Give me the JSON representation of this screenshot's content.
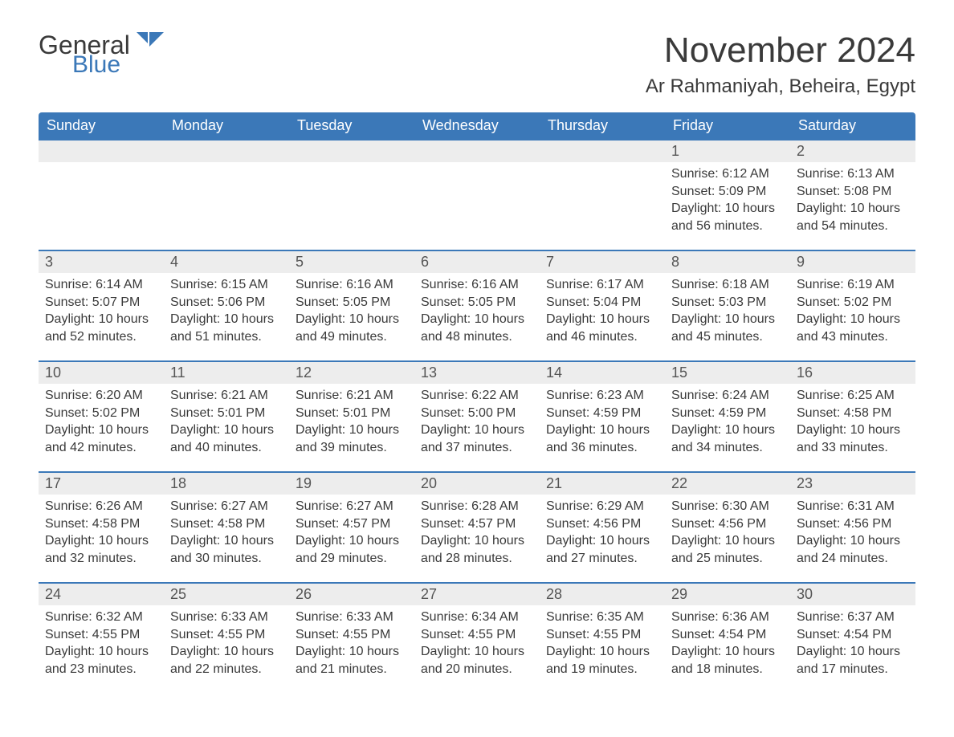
{
  "logo": {
    "part1": "General",
    "part2": "Blue",
    "accent_color": "#3b78b8"
  },
  "title": "November 2024",
  "location": "Ar Rahmaniyah, Beheira, Egypt",
  "colors": {
    "header_bg": "#3b78b8",
    "header_text": "#ffffff",
    "daynum_bg": "#ededed",
    "daynum_border": "#3b78b8",
    "body_text": "#3a3a3a",
    "daynum_text": "#555555",
    "page_bg": "#ffffff"
  },
  "type": "calendar-table",
  "weekdays": [
    "Sunday",
    "Monday",
    "Tuesday",
    "Wednesday",
    "Thursday",
    "Friday",
    "Saturday"
  ],
  "weeks": [
    [
      null,
      null,
      null,
      null,
      null,
      {
        "n": "1",
        "sunrise": "Sunrise: 6:12 AM",
        "sunset": "Sunset: 5:09 PM",
        "daylight": "Daylight: 10 hours and 56 minutes."
      },
      {
        "n": "2",
        "sunrise": "Sunrise: 6:13 AM",
        "sunset": "Sunset: 5:08 PM",
        "daylight": "Daylight: 10 hours and 54 minutes."
      }
    ],
    [
      {
        "n": "3",
        "sunrise": "Sunrise: 6:14 AM",
        "sunset": "Sunset: 5:07 PM",
        "daylight": "Daylight: 10 hours and 52 minutes."
      },
      {
        "n": "4",
        "sunrise": "Sunrise: 6:15 AM",
        "sunset": "Sunset: 5:06 PM",
        "daylight": "Daylight: 10 hours and 51 minutes."
      },
      {
        "n": "5",
        "sunrise": "Sunrise: 6:16 AM",
        "sunset": "Sunset: 5:05 PM",
        "daylight": "Daylight: 10 hours and 49 minutes."
      },
      {
        "n": "6",
        "sunrise": "Sunrise: 6:16 AM",
        "sunset": "Sunset: 5:05 PM",
        "daylight": "Daylight: 10 hours and 48 minutes."
      },
      {
        "n": "7",
        "sunrise": "Sunrise: 6:17 AM",
        "sunset": "Sunset: 5:04 PM",
        "daylight": "Daylight: 10 hours and 46 minutes."
      },
      {
        "n": "8",
        "sunrise": "Sunrise: 6:18 AM",
        "sunset": "Sunset: 5:03 PM",
        "daylight": "Daylight: 10 hours and 45 minutes."
      },
      {
        "n": "9",
        "sunrise": "Sunrise: 6:19 AM",
        "sunset": "Sunset: 5:02 PM",
        "daylight": "Daylight: 10 hours and 43 minutes."
      }
    ],
    [
      {
        "n": "10",
        "sunrise": "Sunrise: 6:20 AM",
        "sunset": "Sunset: 5:02 PM",
        "daylight": "Daylight: 10 hours and 42 minutes."
      },
      {
        "n": "11",
        "sunrise": "Sunrise: 6:21 AM",
        "sunset": "Sunset: 5:01 PM",
        "daylight": "Daylight: 10 hours and 40 minutes."
      },
      {
        "n": "12",
        "sunrise": "Sunrise: 6:21 AM",
        "sunset": "Sunset: 5:01 PM",
        "daylight": "Daylight: 10 hours and 39 minutes."
      },
      {
        "n": "13",
        "sunrise": "Sunrise: 6:22 AM",
        "sunset": "Sunset: 5:00 PM",
        "daylight": "Daylight: 10 hours and 37 minutes."
      },
      {
        "n": "14",
        "sunrise": "Sunrise: 6:23 AM",
        "sunset": "Sunset: 4:59 PM",
        "daylight": "Daylight: 10 hours and 36 minutes."
      },
      {
        "n": "15",
        "sunrise": "Sunrise: 6:24 AM",
        "sunset": "Sunset: 4:59 PM",
        "daylight": "Daylight: 10 hours and 34 minutes."
      },
      {
        "n": "16",
        "sunrise": "Sunrise: 6:25 AM",
        "sunset": "Sunset: 4:58 PM",
        "daylight": "Daylight: 10 hours and 33 minutes."
      }
    ],
    [
      {
        "n": "17",
        "sunrise": "Sunrise: 6:26 AM",
        "sunset": "Sunset: 4:58 PM",
        "daylight": "Daylight: 10 hours and 32 minutes."
      },
      {
        "n": "18",
        "sunrise": "Sunrise: 6:27 AM",
        "sunset": "Sunset: 4:58 PM",
        "daylight": "Daylight: 10 hours and 30 minutes."
      },
      {
        "n": "19",
        "sunrise": "Sunrise: 6:27 AM",
        "sunset": "Sunset: 4:57 PM",
        "daylight": "Daylight: 10 hours and 29 minutes."
      },
      {
        "n": "20",
        "sunrise": "Sunrise: 6:28 AM",
        "sunset": "Sunset: 4:57 PM",
        "daylight": "Daylight: 10 hours and 28 minutes."
      },
      {
        "n": "21",
        "sunrise": "Sunrise: 6:29 AM",
        "sunset": "Sunset: 4:56 PM",
        "daylight": "Daylight: 10 hours and 27 minutes."
      },
      {
        "n": "22",
        "sunrise": "Sunrise: 6:30 AM",
        "sunset": "Sunset: 4:56 PM",
        "daylight": "Daylight: 10 hours and 25 minutes."
      },
      {
        "n": "23",
        "sunrise": "Sunrise: 6:31 AM",
        "sunset": "Sunset: 4:56 PM",
        "daylight": "Daylight: 10 hours and 24 minutes."
      }
    ],
    [
      {
        "n": "24",
        "sunrise": "Sunrise: 6:32 AM",
        "sunset": "Sunset: 4:55 PM",
        "daylight": "Daylight: 10 hours and 23 minutes."
      },
      {
        "n": "25",
        "sunrise": "Sunrise: 6:33 AM",
        "sunset": "Sunset: 4:55 PM",
        "daylight": "Daylight: 10 hours and 22 minutes."
      },
      {
        "n": "26",
        "sunrise": "Sunrise: 6:33 AM",
        "sunset": "Sunset: 4:55 PM",
        "daylight": "Daylight: 10 hours and 21 minutes."
      },
      {
        "n": "27",
        "sunrise": "Sunrise: 6:34 AM",
        "sunset": "Sunset: 4:55 PM",
        "daylight": "Daylight: 10 hours and 20 minutes."
      },
      {
        "n": "28",
        "sunrise": "Sunrise: 6:35 AM",
        "sunset": "Sunset: 4:55 PM",
        "daylight": "Daylight: 10 hours and 19 minutes."
      },
      {
        "n": "29",
        "sunrise": "Sunrise: 6:36 AM",
        "sunset": "Sunset: 4:54 PM",
        "daylight": "Daylight: 10 hours and 18 minutes."
      },
      {
        "n": "30",
        "sunrise": "Sunrise: 6:37 AM",
        "sunset": "Sunset: 4:54 PM",
        "daylight": "Daylight: 10 hours and 17 minutes."
      }
    ]
  ]
}
